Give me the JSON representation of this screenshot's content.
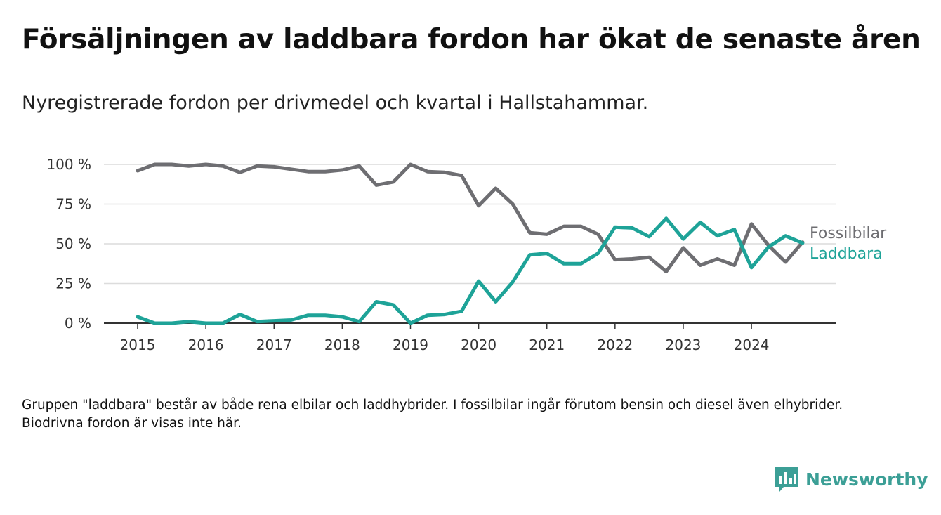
{
  "header": {
    "title": "Försäljningen av laddbara fordon har ökat de senaste åren",
    "subtitle": "Nyregistrerade fordon per drivmedel och kvartal i Hallstahammar."
  },
  "footer": {
    "note": "Gruppen \"laddbara\" består av både rena elbilar och laddhybrider. I fossilbilar ingår förutom bensin och diesel även elhybrider. Biodrivna fordon är visas inte här.",
    "brand": "Newsworthy",
    "brand_color": "#3c9f96"
  },
  "chart_data": {
    "type": "line",
    "x_tick_labels": [
      "2015",
      "2016",
      "2017",
      "2018",
      "2019",
      "2020",
      "2021",
      "2022",
      "2023",
      "2024"
    ],
    "y_tick_labels": [
      "0 %",
      "25 %",
      "50 %",
      "75 %",
      "100 %"
    ],
    "ylim": [
      0,
      100
    ],
    "y_ticks": [
      0,
      25,
      50,
      75,
      100
    ],
    "x_start": "2015Q1",
    "grid": true,
    "legend_placement": "right, at line ends",
    "series": [
      {
        "name": "Fossilbilar",
        "color": "#6e6e72",
        "values": [
          96,
          100,
          100,
          99,
          100,
          99,
          95,
          99,
          98.5,
          97,
          95.5,
          95.5,
          96.5,
          99,
          87,
          89,
          100,
          95.5,
          95,
          93,
          74,
          85,
          75,
          57,
          56,
          61,
          61,
          56,
          40,
          40.5,
          41.5,
          32.5,
          47.5,
          36.5,
          40.5,
          36.5,
          62.5,
          49,
          38.5,
          51
        ]
      },
      {
        "name": "Laddbara",
        "color": "#1ea398",
        "values": [
          4,
          0,
          0,
          1,
          0,
          0,
          5.5,
          1,
          1.5,
          2,
          5,
          5,
          4,
          1,
          13.5,
          11.5,
          0,
          5,
          5.5,
          7.5,
          26.5,
          13.5,
          26,
          43,
          44,
          37.5,
          37.5,
          44,
          60.5,
          60,
          54.5,
          66,
          53,
          63.5,
          55,
          59,
          35,
          48,
          55,
          50.5
        ]
      }
    ]
  }
}
